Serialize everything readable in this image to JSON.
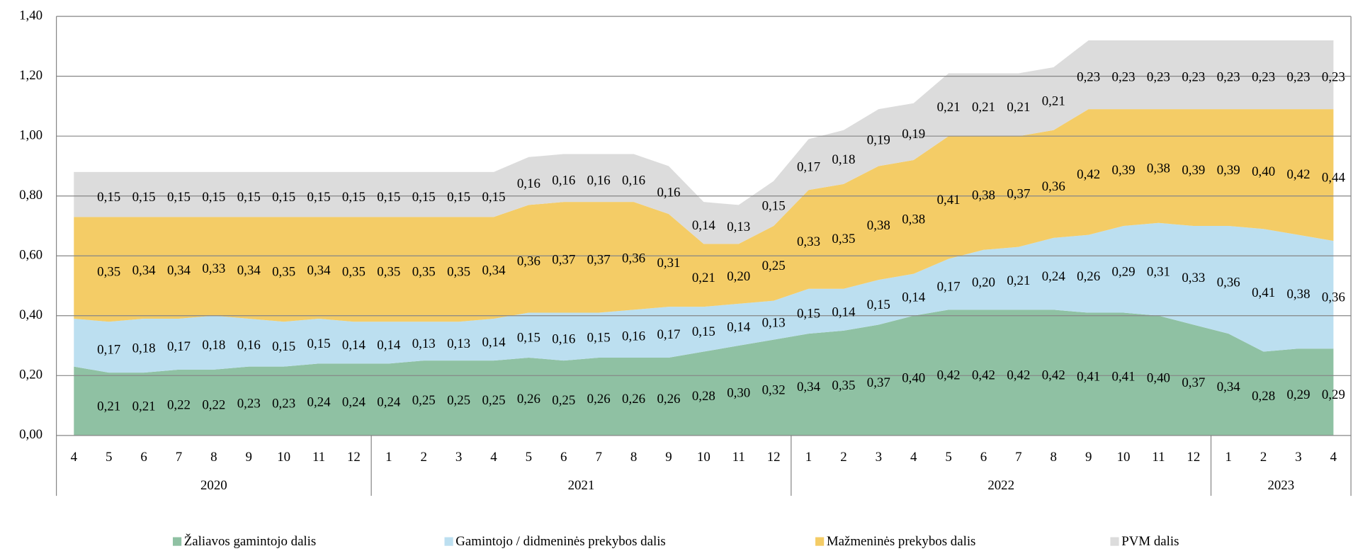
{
  "chart_data": {
    "type": "stacked_area",
    "category_groups": [
      {
        "label": "2020",
        "categories": [
          "4",
          "5",
          "6",
          "7",
          "8",
          "9",
          "10",
          "11",
          "12"
        ]
      },
      {
        "label": "2021",
        "categories": [
          "1",
          "2",
          "3",
          "4",
          "5",
          "6",
          "7",
          "8",
          "9",
          "10",
          "11",
          "12"
        ]
      },
      {
        "label": "2022",
        "categories": [
          "1",
          "2",
          "3",
          "4",
          "5",
          "6",
          "7",
          "8",
          "9",
          "10",
          "11",
          "12"
        ]
      },
      {
        "label": "2023",
        "categories": [
          "1",
          "2",
          "3",
          "4"
        ]
      }
    ],
    "ylim": [
      0,
      1.4
    ],
    "yticks": [
      {
        "value": 0,
        "label": "0,00"
      },
      {
        "value": 0.2,
        "label": "0,20"
      },
      {
        "value": 0.4,
        "label": "0,40"
      },
      {
        "value": 0.6,
        "label": "0,60"
      },
      {
        "value": 0.8,
        "label": "0,80"
      },
      {
        "value": 1.0,
        "label": "1,00"
      },
      {
        "value": 1.2,
        "label": "1,20"
      },
      {
        "value": 1.4,
        "label": "1,40"
      }
    ],
    "grid": true,
    "legend": "bottom",
    "series": [
      {
        "name": "Žaliavos gamintojo dalis",
        "color": "#8fc1a3",
        "values": [
          0.23,
          0.21,
          0.21,
          0.22,
          0.22,
          0.23,
          0.23,
          0.24,
          0.24,
          0.24,
          0.25,
          0.25,
          0.25,
          0.26,
          0.25,
          0.26,
          0.26,
          0.26,
          0.28,
          0.3,
          0.32,
          0.34,
          0.35,
          0.37,
          0.4,
          0.42,
          0.42,
          0.42,
          0.42,
          0.41,
          0.41,
          0.4,
          0.37,
          0.34,
          0.28,
          0.29,
          0.29
        ],
        "value_labels": [
          null,
          "0,21",
          "0,21",
          "0,22",
          "0,22",
          "0,23",
          "0,23",
          "0,24",
          "0,24",
          "0,24",
          "0,25",
          "0,25",
          "0,25",
          "0,26",
          "0,25",
          "0,26",
          "0,26",
          "0,26",
          "0,28",
          "0,30",
          "0,32",
          "0,34",
          "0,35",
          "0,37",
          "0,40",
          "0,42",
          "0,42",
          "0,42",
          "0,42",
          "0,41",
          "0,41",
          "0,40",
          "0,37",
          "0,34",
          "0,28",
          "0,29",
          "0,29"
        ]
      },
      {
        "name": "Gamintojo / didmeninės prekybos dalis",
        "color": "#bcdff0",
        "values": [
          0.16,
          0.17,
          0.18,
          0.17,
          0.18,
          0.16,
          0.15,
          0.15,
          0.14,
          0.14,
          0.13,
          0.13,
          0.14,
          0.15,
          0.16,
          0.15,
          0.16,
          0.17,
          0.15,
          0.14,
          0.13,
          0.15,
          0.14,
          0.15,
          0.14,
          0.17,
          0.2,
          0.21,
          0.24,
          0.26,
          0.29,
          0.31,
          0.33,
          0.36,
          0.41,
          0.38,
          0.36
        ],
        "value_labels": [
          null,
          "0,17",
          "0,18",
          "0,17",
          "0,18",
          "0,16",
          "0,15",
          "0,15",
          "0,14",
          "0,14",
          "0,13",
          "0,13",
          "0,14",
          "0,15",
          "0,16",
          "0,15",
          "0,16",
          "0,17",
          "0,15",
          "0,14",
          "0,13",
          "0,15",
          "0,14",
          "0,15",
          "0,14",
          "0,17",
          "0,20",
          "0,21",
          "0,24",
          "0,26",
          "0,29",
          "0,31",
          "0,33",
          "0,36",
          "0,41",
          "0,38",
          "0,36"
        ]
      },
      {
        "name": "Mažmeninės prekybos dalis",
        "color": "#f4cc66",
        "values": [
          0.34,
          0.35,
          0.34,
          0.34,
          0.33,
          0.34,
          0.35,
          0.34,
          0.35,
          0.35,
          0.35,
          0.35,
          0.34,
          0.36,
          0.37,
          0.37,
          0.36,
          0.31,
          0.21,
          0.2,
          0.25,
          0.33,
          0.35,
          0.38,
          0.38,
          0.41,
          0.38,
          0.37,
          0.36,
          0.42,
          0.39,
          0.38,
          0.39,
          0.39,
          0.4,
          0.42,
          0.44
        ],
        "value_labels": [
          null,
          "0,35",
          "0,34",
          "0,34",
          "0,33",
          "0,34",
          "0,35",
          "0,34",
          "0,35",
          "0,35",
          "0,35",
          "0,35",
          "0,34",
          "0,36",
          "0,37",
          "0,37",
          "0,36",
          "0,31",
          "0,21",
          "0,20",
          "0,25",
          "0,33",
          "0,35",
          "0,38",
          "0,38",
          "0,41",
          "0,38",
          "0,37",
          "0,36",
          "0,42",
          "0,39",
          "0,38",
          "0,39",
          "0,39",
          "0,40",
          "0,42",
          "0,44"
        ]
      },
      {
        "name": "PVM dalis",
        "color": "#dcdcdc",
        "values": [
          0.15,
          0.15,
          0.15,
          0.15,
          0.15,
          0.15,
          0.15,
          0.15,
          0.15,
          0.15,
          0.15,
          0.15,
          0.15,
          0.16,
          0.16,
          0.16,
          0.16,
          0.16,
          0.14,
          0.13,
          0.15,
          0.17,
          0.18,
          0.19,
          0.19,
          0.21,
          0.21,
          0.21,
          0.21,
          0.23,
          0.23,
          0.23,
          0.23,
          0.23,
          0.23,
          0.23,
          0.23
        ],
        "value_labels": [
          null,
          "0,15",
          "0,15",
          "0,15",
          "0,15",
          "0,15",
          "0,15",
          "0,15",
          "0,15",
          "0,15",
          "0,15",
          "0,15",
          "0,15",
          "0,16",
          "0,16",
          "0,16",
          "0,16",
          "0,16",
          "0,14",
          "0,13",
          "0,15",
          "0,17",
          "0,18",
          "0,19",
          "0,19",
          "0,21",
          "0,21",
          "0,21",
          "0,21",
          "0,23",
          "0,23",
          "0,23",
          "0,23",
          "0,23",
          "0,23",
          "0,23",
          "0,23"
        ]
      }
    ]
  }
}
